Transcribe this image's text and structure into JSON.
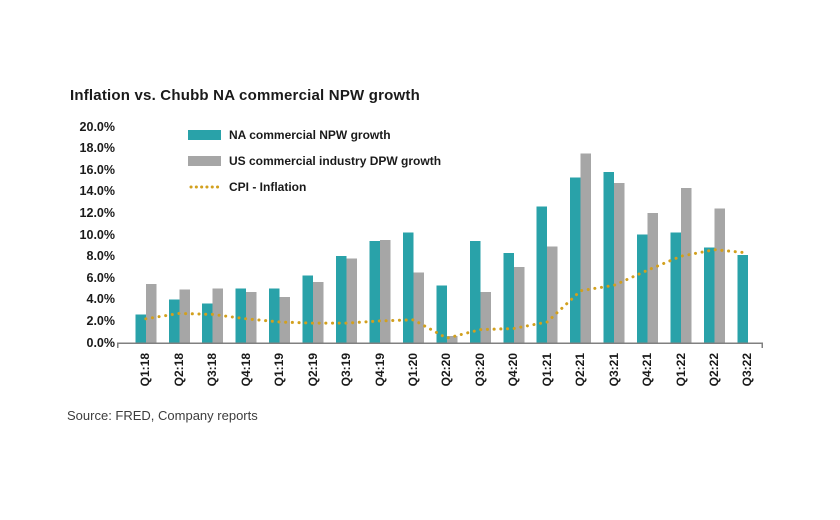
{
  "title": "Inflation vs. Chubb NA commercial NPW growth",
  "source_note": "Source: FRED, Company reports",
  "colors": {
    "npw_teal": "#29A2A9",
    "dpw_gray": "#A6A6A6",
    "cpi_gold": "#D2A01E",
    "axis_gray": "#808080",
    "text_dark": "#1A1A1A",
    "source_text": "#3D3D3D"
  },
  "legend": [
    {
      "label": "NA commercial NPW growth",
      "marker": "bar-swatch",
      "color": "#29A2A9"
    },
    {
      "label": "US commercial industry DPW growth",
      "marker": "bar-swatch",
      "color": "#A6A6A6"
    },
    {
      "label": "CPI - Inflation",
      "marker": "dotted-line-swatch",
      "color": "#D2A01E"
    }
  ],
  "chart_data": {
    "type": "bar",
    "subtype": "grouped bars with dotted line overlay",
    "categories": [
      "Q1:18",
      "Q2:18",
      "Q3:18",
      "Q4:18",
      "Q1:19",
      "Q2:19",
      "Q3:19",
      "Q4:19",
      "Q1:20",
      "Q2:20",
      "Q3:20",
      "Q4:20",
      "Q1:21",
      "Q2:21",
      "Q3:21",
      "Q4:21",
      "Q1:22",
      "Q2:22",
      "Q3:22"
    ],
    "series": [
      {
        "name": "NA commercial NPW growth",
        "type": "bar",
        "color": "#29A2A9",
        "values": [
          2.6,
          4.0,
          3.6,
          5.0,
          5.0,
          6.2,
          8.0,
          9.4,
          10.2,
          5.3,
          9.4,
          8.3,
          12.6,
          15.3,
          15.8,
          10.0,
          10.2,
          8.8,
          8.1
        ]
      },
      {
        "name": "US commercial industry DPW growth",
        "type": "bar",
        "color": "#A6A6A6",
        "values": [
          5.4,
          4.9,
          5.0,
          4.7,
          4.2,
          5.6,
          7.8,
          9.5,
          6.5,
          0.6,
          4.7,
          7.0,
          8.9,
          17.5,
          14.8,
          12.0,
          14.3,
          12.4,
          null
        ]
      },
      {
        "name": "CPI - Inflation",
        "type": "dotted-line",
        "color": "#D2A01E",
        "values": [
          2.2,
          2.7,
          2.6,
          2.2,
          1.9,
          1.8,
          1.8,
          2.0,
          2.1,
          0.4,
          1.2,
          1.3,
          1.9,
          4.8,
          5.3,
          6.7,
          8.0,
          8.6,
          8.3
        ]
      }
    ],
    "title": "Inflation vs. Chubb NA commercial NPW growth",
    "xlabel": "",
    "ylabel": "",
    "ylim": [
      0,
      20
    ],
    "ytick_step": 2,
    "ytick_labels": [
      "20.0%",
      "18.0%",
      "16.0%",
      "14.0%",
      "12.0%",
      "10.0%",
      "8.0%",
      "6.0%",
      "4.0%",
      "2.0%",
      "0.0%"
    ],
    "value_unit": "percent",
    "grid": false,
    "legend_position": "top-left inside plot"
  }
}
